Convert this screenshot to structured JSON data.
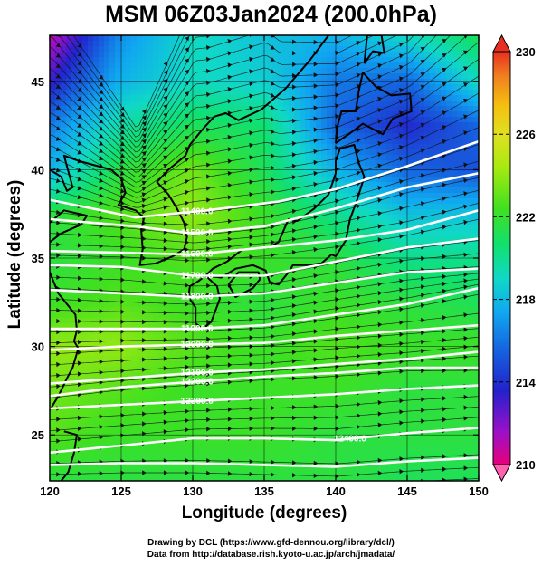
{
  "title": "MSM 06Z03Jan2024 (200.0hPa)",
  "xlabel": "Longitude (degrees)",
  "ylabel": "Latitude  (degrees)",
  "credits": {
    "line1": "Drawing by DCL (https://www.gfd-dennou.org/library/dcl/)",
    "line2": "Data from http://database.rish.kyoto-u.ac.jp/arch/jmadata/"
  },
  "chart_data": {
    "type": "heatmap",
    "description": "temperature shading with wind streamlines and geopotential height contours",
    "xlim": [
      120,
      150
    ],
    "ylim": [
      22.4,
      47.6
    ],
    "xticks": [
      120,
      125,
      130,
      135,
      140,
      145,
      150
    ],
    "yticks": [
      25,
      30,
      35,
      40,
      45
    ],
    "colorbar": {
      "range": [
        210,
        230
      ],
      "ticks": [
        210,
        214,
        218,
        222,
        226,
        230
      ],
      "colors": [
        "#e8007a",
        "#9b10c8",
        "#2222cc",
        "#1565e0",
        "#10a8f0",
        "#10d8c8",
        "#10e070",
        "#40e020",
        "#a8ea10",
        "#e0e020",
        "#f4c010",
        "#f08020",
        "#e83020"
      ]
    },
    "field": {
      "lons": [
        120,
        125,
        130,
        135,
        140,
        145,
        150
      ],
      "lats": [
        47.6,
        45,
        42.5,
        40,
        37.5,
        35,
        32.5,
        30,
        27.5,
        25,
        22.4
      ],
      "values": [
        [
          211.0,
          216.0,
          218.5,
          217.5,
          217.0,
          218.5,
          220.5
        ],
        [
          213.0,
          217.0,
          218.5,
          218.0,
          215.5,
          215.0,
          218.5
        ],
        [
          215.5,
          219.0,
          220.5,
          220.0,
          215.0,
          213.5,
          215.0
        ],
        [
          217.0,
          221.0,
          222.5,
          220.5,
          217.0,
          215.0,
          214.5
        ],
        [
          221.0,
          222.0,
          223.0,
          221.5,
          219.5,
          217.5,
          217.5
        ],
        [
          221.0,
          221.5,
          222.0,
          221.5,
          221.0,
          219.5,
          219.5
        ],
        [
          221.5,
          222.0,
          221.5,
          221.0,
          221.5,
          221.0,
          220.5
        ],
        [
          223.0,
          223.0,
          222.0,
          221.5,
          222.0,
          221.5,
          221.5
        ],
        [
          222.5,
          222.0,
          221.5,
          221.5,
          221.5,
          221.0,
          221.0
        ],
        [
          222.0,
          221.5,
          221.5,
          221.5,
          221.0,
          221.0,
          221.0
        ],
        [
          221.0,
          221.0,
          221.0,
          221.0,
          221.0,
          220.5,
          220.5
        ]
      ]
    },
    "height_contours": [
      {
        "label": "11400.0",
        "points": [
          [
            120,
            38.3
          ],
          [
            126,
            37.3
          ],
          [
            131,
            37.7
          ],
          [
            136,
            38.2
          ],
          [
            140,
            38.9
          ],
          [
            145,
            40.2
          ],
          [
            150,
            41.6
          ]
        ]
      },
      {
        "label": "11500.0",
        "points": [
          [
            120,
            37.2
          ],
          [
            126,
            36.8
          ],
          [
            130,
            36.4
          ],
          [
            135,
            36.8
          ],
          [
            140,
            37.8
          ],
          [
            145,
            39.0
          ],
          [
            150,
            39.8
          ]
        ]
      },
      {
        "label": "11600.0",
        "points": [
          [
            120,
            35.4
          ],
          [
            125,
            35.3
          ],
          [
            130,
            35.2
          ],
          [
            135,
            35.6
          ],
          [
            140,
            36.0
          ],
          [
            145,
            36.6
          ],
          [
            150,
            37.7
          ]
        ]
      },
      {
        "label": "11700.0",
        "points": [
          [
            120,
            34.6
          ],
          [
            125,
            34.5
          ],
          [
            130,
            34.0
          ],
          [
            135,
            34.0
          ],
          [
            140,
            34.8
          ],
          [
            145,
            35.6
          ],
          [
            150,
            36.1
          ]
        ]
      },
      {
        "label": "11800.0",
        "points": [
          [
            120,
            33.2
          ],
          [
            125,
            33.0
          ],
          [
            130,
            32.8
          ],
          [
            135,
            33.0
          ],
          [
            140,
            33.6
          ],
          [
            145,
            34.2
          ],
          [
            150,
            34.4
          ]
        ]
      },
      {
        "label": "11900.0",
        "points": [
          [
            120,
            31.0
          ],
          [
            125,
            31.0
          ],
          [
            130,
            31.0
          ],
          [
            135,
            31.2
          ],
          [
            140,
            31.8
          ],
          [
            145,
            32.4
          ],
          [
            150,
            33.3
          ]
        ]
      },
      {
        "label": "12000.0",
        "points": [
          [
            120,
            29.8
          ],
          [
            125,
            30.0
          ],
          [
            130,
            30.1
          ],
          [
            135,
            30.2
          ],
          [
            140,
            30.6
          ],
          [
            145,
            30.9
          ],
          [
            150,
            31.2
          ]
        ]
      },
      {
        "label": "12100.0",
        "points": [
          [
            120,
            27.9
          ],
          [
            125,
            28.2
          ],
          [
            130,
            28.5
          ],
          [
            135,
            28.7
          ],
          [
            140,
            29.0
          ],
          [
            145,
            29.3
          ],
          [
            150,
            29.7
          ]
        ]
      },
      {
        "label": "12200.0",
        "points": [
          [
            120,
            27.2
          ],
          [
            125,
            27.7
          ],
          [
            130,
            28.0
          ],
          [
            135,
            28.3
          ],
          [
            140,
            28.5
          ],
          [
            145,
            28.8
          ],
          [
            150,
            28.8
          ]
        ]
      },
      {
        "label": "12300.0",
        "points": [
          [
            120,
            26.5
          ],
          [
            125,
            26.7
          ],
          [
            130,
            26.9
          ],
          [
            135,
            27.1
          ],
          [
            140,
            27.3
          ],
          [
            145,
            27.6
          ],
          [
            150,
            27.8
          ]
        ]
      },
      {
        "label": "12400.0",
        "points": [
          [
            120,
            24.0
          ],
          [
            125,
            24.4
          ],
          [
            130,
            24.8
          ],
          [
            135,
            24.8
          ],
          [
            140,
            24.7
          ],
          [
            145,
            25.1
          ],
          [
            150,
            25.4
          ]
        ]
      },
      {
        "label": "",
        "points": [
          [
            120,
            23.3
          ],
          [
            125,
            23.4
          ],
          [
            130,
            23.4
          ],
          [
            135,
            23.3
          ],
          [
            140,
            23.2
          ],
          [
            145,
            23.5
          ],
          [
            150,
            23.7
          ]
        ]
      }
    ],
    "coastlines": [
      {
        "name": "japan-honshu",
        "points": [
          [
            130.9,
            34.0
          ],
          [
            131.4,
            34.4
          ],
          [
            132.4,
            34.8
          ],
          [
            133.5,
            35.5
          ],
          [
            135.3,
            35.6
          ],
          [
            136.0,
            35.9
          ],
          [
            136.7,
            37.2
          ],
          [
            137.3,
            37.1
          ],
          [
            138.5,
            37.8
          ],
          [
            139.5,
            38.6
          ],
          [
            140.0,
            39.8
          ],
          [
            140.0,
            40.5
          ],
          [
            140.3,
            41.2
          ],
          [
            141.3,
            41.4
          ],
          [
            141.6,
            40.4
          ],
          [
            142.0,
            39.6
          ],
          [
            141.5,
            38.3
          ],
          [
            141.0,
            37.2
          ],
          [
            140.7,
            36.0
          ],
          [
            140.0,
            35.1
          ],
          [
            139.7,
            35.2
          ],
          [
            139.0,
            34.7
          ],
          [
            138.0,
            34.6
          ],
          [
            137.0,
            34.6
          ],
          [
            136.8,
            34.3
          ],
          [
            136.0,
            33.5
          ],
          [
            135.4,
            33.6
          ],
          [
            135.1,
            34.3
          ],
          [
            134.2,
            34.6
          ],
          [
            133.0,
            34.4
          ],
          [
            132.0,
            33.9
          ],
          [
            130.9,
            34.0
          ]
        ]
      },
      {
        "name": "japan-kyushu",
        "points": [
          [
            130.9,
            34.0
          ],
          [
            131.7,
            33.4
          ],
          [
            131.9,
            32.7
          ],
          [
            131.3,
            31.4
          ],
          [
            130.7,
            31.0
          ],
          [
            130.2,
            31.3
          ],
          [
            130.2,
            32.2
          ],
          [
            129.7,
            32.8
          ],
          [
            129.8,
            33.4
          ],
          [
            130.4,
            33.7
          ],
          [
            130.9,
            34.0
          ]
        ]
      },
      {
        "name": "japan-shikoku",
        "points": [
          [
            132.5,
            33.5
          ],
          [
            133.2,
            34.2
          ],
          [
            134.6,
            34.2
          ],
          [
            134.7,
            33.8
          ],
          [
            134.2,
            33.3
          ],
          [
            133.0,
            32.8
          ],
          [
            132.5,
            33.5
          ]
        ]
      },
      {
        "name": "japan-hokkaido",
        "points": [
          [
            140.0,
            41.5
          ],
          [
            140.1,
            42.4
          ],
          [
            140.4,
            43.3
          ],
          [
            141.4,
            43.3
          ],
          [
            141.6,
            44.4
          ],
          [
            141.9,
            45.5
          ],
          [
            142.8,
            44.7
          ],
          [
            143.9,
            44.2
          ],
          [
            145.2,
            44.3
          ],
          [
            145.3,
            43.3
          ],
          [
            144.0,
            42.9
          ],
          [
            143.3,
            42.0
          ],
          [
            141.9,
            42.6
          ],
          [
            140.9,
            42.0
          ],
          [
            140.0,
            41.5
          ]
        ]
      },
      {
        "name": "sakhalin",
        "points": [
          [
            142.0,
            46.0
          ],
          [
            142.2,
            47.6
          ],
          [
            143.2,
            47.6
          ],
          [
            143.4,
            46.6
          ],
          [
            142.6,
            46.7
          ],
          [
            142.0,
            46.0
          ]
        ]
      },
      {
        "name": "korea",
        "points": [
          [
            124.3,
            40.0
          ],
          [
            125.0,
            39.5
          ],
          [
            125.3,
            38.7
          ],
          [
            124.8,
            38.0
          ],
          [
            126.0,
            37.7
          ],
          [
            126.6,
            37.3
          ],
          [
            126.4,
            36.6
          ],
          [
            126.5,
            35.5
          ],
          [
            126.3,
            34.6
          ],
          [
            127.4,
            34.7
          ],
          [
            128.6,
            35.1
          ],
          [
            129.4,
            35.5
          ],
          [
            129.6,
            36.2
          ],
          [
            129.4,
            37.0
          ],
          [
            128.9,
            37.8
          ],
          [
            128.3,
            38.6
          ],
          [
            127.5,
            39.3
          ],
          [
            128.3,
            40.0
          ],
          [
            129.5,
            40.8
          ],
          [
            129.8,
            41.4
          ],
          [
            130.7,
            42.3
          ]
        ]
      },
      {
        "name": "mainland-north",
        "points": [
          [
            130.7,
            42.3
          ],
          [
            131.5,
            43.0
          ],
          [
            132.3,
            43.2
          ],
          [
            133.2,
            42.8
          ],
          [
            134.8,
            43.4
          ],
          [
            136.5,
            44.6
          ],
          [
            138.2,
            46.2
          ],
          [
            139.5,
            47.6
          ]
        ]
      },
      {
        "name": "china-coast",
        "points": [
          [
            124.3,
            40.0
          ],
          [
            122.0,
            40.5
          ],
          [
            121.0,
            40.8
          ],
          [
            121.6,
            39.0
          ],
          [
            121.2,
            38.8
          ],
          [
            120.8,
            39.6
          ],
          [
            120.0,
            40.0
          ]
        ]
      },
      {
        "name": "shandong",
        "points": [
          [
            120.0,
            37.0
          ],
          [
            121.0,
            37.7
          ],
          [
            122.6,
            37.4
          ],
          [
            122.2,
            36.9
          ],
          [
            120.8,
            36.4
          ],
          [
            120.0,
            35.9
          ]
        ]
      },
      {
        "name": "china-east",
        "points": [
          [
            120.0,
            34.2
          ],
          [
            120.6,
            33.0
          ],
          [
            121.8,
            31.8
          ],
          [
            121.9,
            30.9
          ],
          [
            121.7,
            30.3
          ],
          [
            122.0,
            29.9
          ],
          [
            121.6,
            28.8
          ],
          [
            121.2,
            28.2
          ],
          [
            120.6,
            27.2
          ],
          [
            120.0,
            26.4
          ]
        ]
      },
      {
        "name": "taiwan",
        "points": [
          [
            121.0,
            25.2
          ],
          [
            121.9,
            25.0
          ],
          [
            121.7,
            24.0
          ],
          [
            121.3,
            22.9
          ],
          [
            120.8,
            22.4
          ]
        ]
      }
    ]
  }
}
